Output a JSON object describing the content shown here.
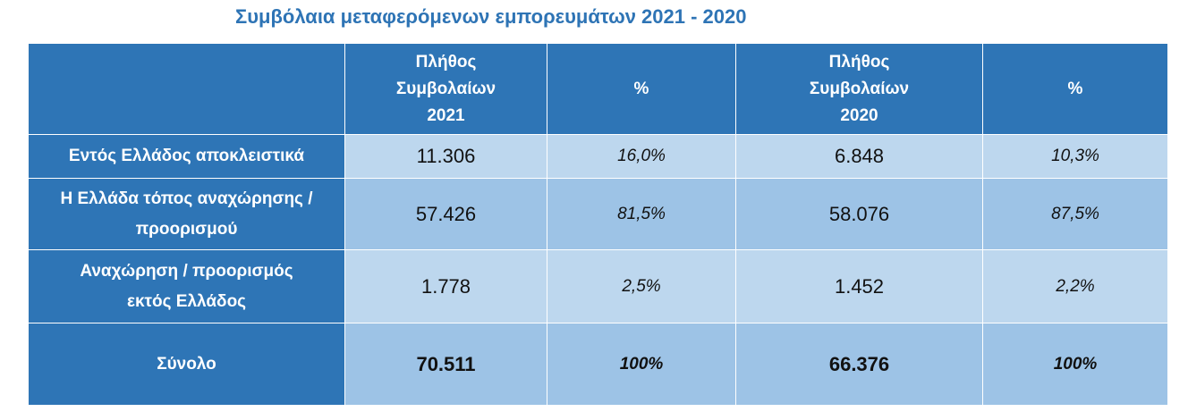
{
  "title": "Συμβόλαια μεταφερόμενων εμπορευμάτων 2021 - 2020",
  "table": {
    "headers": {
      "count_2021": [
        "Πλήθος",
        "Συμβολαίων",
        "2021"
      ],
      "pct_2021": "%",
      "count_2020": [
        "Πλήθος",
        "Συμβολαίων",
        "2020"
      ],
      "pct_2020": "%"
    },
    "rows": [
      {
        "label": [
          "Εντός Ελλάδος αποκλειστικά"
        ],
        "count_2021": "11.306",
        "pct_2021": "16,0%",
        "count_2020": "6.848",
        "pct_2020": "10,3%"
      },
      {
        "label": [
          "Η Ελλάδα τόπος αναχώρησης /",
          "προορισμού"
        ],
        "count_2021": "57.426",
        "pct_2021": "81,5%",
        "count_2020": "58.076",
        "pct_2020": "87,5%"
      },
      {
        "label": [
          "Αναχώρηση  /  προορισμός",
          "εκτός Ελλάδος"
        ],
        "count_2021": "1.778",
        "pct_2021": "2,5%",
        "count_2020": "1.452",
        "pct_2020": "2,2%"
      },
      {
        "label": [
          "Σύνολο"
        ],
        "count_2021": "70.511",
        "pct_2021": "100%",
        "count_2020": "66.376",
        "pct_2020": "100%"
      }
    ]
  }
}
